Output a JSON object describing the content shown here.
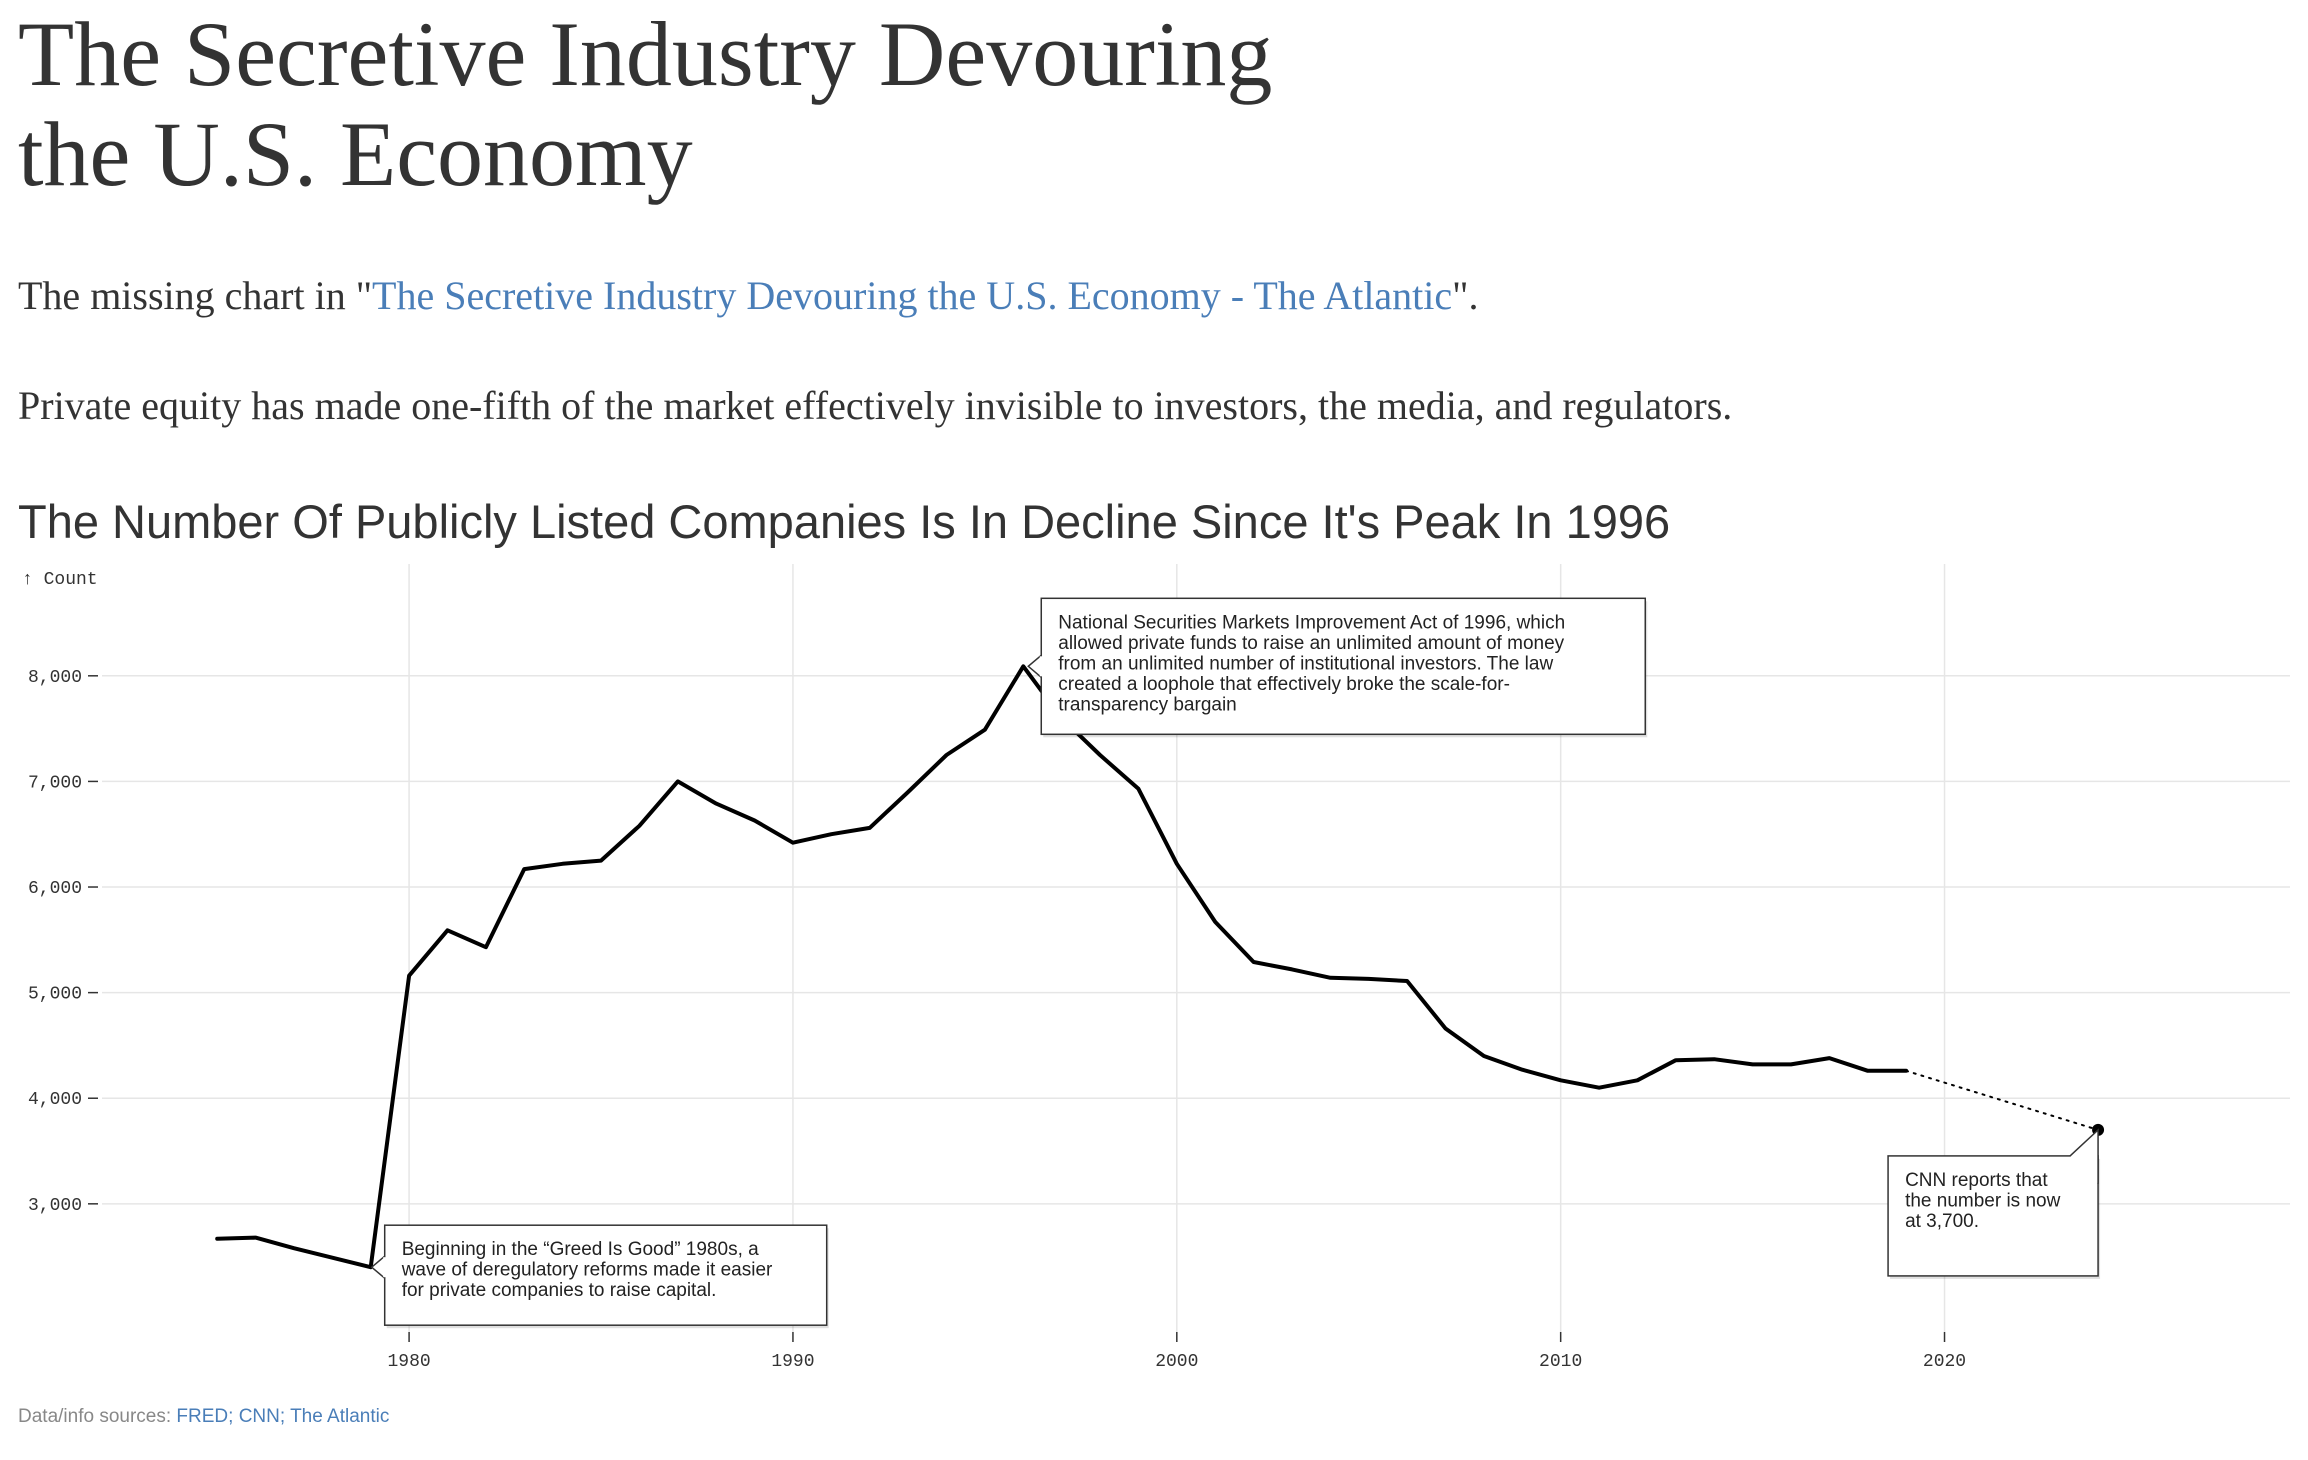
{
  "header": {
    "title_line1": "The Secretive Industry Devouring",
    "title_line2": "the U.S. Economy",
    "intro_prefix": "The missing chart in \"",
    "intro_link": "The Secretive Industry Devouring the U.S. Economy - The Atlantic",
    "intro_suffix": "\".",
    "lede": "Private equity has made one-fifth of the market effectively invisible to investors, the media, and regulators."
  },
  "footer": {
    "source_prefix": "Data/info sources: ",
    "source_links": "FRED; CNN; The Atlantic"
  },
  "chart_data": {
    "type": "line",
    "title": "The Number Of Publicly Listed Companies Is In Decline Since It's Peak In 1996",
    "ylabel": "↑ Count",
    "xlabel": "",
    "xlim": [
      1972,
      2029
    ],
    "ylim": [
      1900,
      8680
    ],
    "x_ticks": [
      1980,
      1990,
      2000,
      2010,
      2020
    ],
    "y_ticks": [
      3000,
      4000,
      5000,
      6000,
      7000,
      8000
    ],
    "y_tick_labels": [
      "3,000",
      "4,000",
      "5,000",
      "6,000",
      "7,000",
      "8,000"
    ],
    "grid": true,
    "series": [
      {
        "style": "solid",
        "color": "#000000",
        "x": [
          1975,
          1976,
          1977,
          1978,
          1979,
          1980,
          1981,
          1982,
          1983,
          1984,
          1985,
          1986,
          1987,
          1988,
          1989,
          1990,
          1991,
          1992,
          1993,
          1994,
          1995,
          1996,
          1997,
          1998,
          1999,
          2000,
          2001,
          2002,
          2003,
          2004,
          2005,
          2006,
          2007,
          2008,
          2009,
          2010,
          2011,
          2012,
          2013,
          2014,
          2015,
          2016,
          2017,
          2018,
          2019
        ],
        "y": [
          2670,
          2680,
          2580,
          2490,
          2400,
          5160,
          5590,
          5430,
          6170,
          6220,
          6250,
          6580,
          7000,
          6790,
          6630,
          6420,
          6500,
          6560,
          6900,
          7250,
          7490,
          8090,
          7600,
          7250,
          6930,
          6220,
          5670,
          5290,
          5220,
          5140,
          5130,
          5110,
          4660,
          4400,
          4270,
          4170,
          4100,
          4170,
          4360,
          4370,
          4320,
          4320,
          4380,
          4260,
          4260
        ]
      },
      {
        "style": "dotted",
        "color": "#000000",
        "x": [
          2019,
          2024
        ],
        "y": [
          4260,
          3700
        ]
      }
    ],
    "annotations": [
      {
        "text": "National Securities Markets Improvement Act of 1996, which allowed private funds to raise an unlimited amount of money from an unlimited number of institutional investors. The law created a loophole that effectively broke the scale-for-transparency bargain",
        "lines": [
          "National Securities Markets Improvement Act of 1996, which",
          "allowed private funds to raise an unlimited amount of money",
          "from an unlimited number of institutional investors. The law",
          "created a loophole that effectively broke the scale-for-",
          "transparency bargain"
        ],
        "x": 1996,
        "y": 8090
      },
      {
        "text": "Beginning in the “Greed Is Good” 1980s, a wave of deregulatory reforms made it easier for private companies to raise capital.",
        "lines": [
          "Beginning in the “Greed Is Good” 1980s, a",
          "wave of deregulatory reforms made it easier",
          "for private companies to raise capital."
        ],
        "x": 1979,
        "y": 2400
      },
      {
        "text": "CNN reports that the number is now at 3,700.",
        "lines": [
          "CNN reports that",
          "the number is now",
          "at 3,700."
        ],
        "x": 2024,
        "y": 3700
      }
    ]
  }
}
